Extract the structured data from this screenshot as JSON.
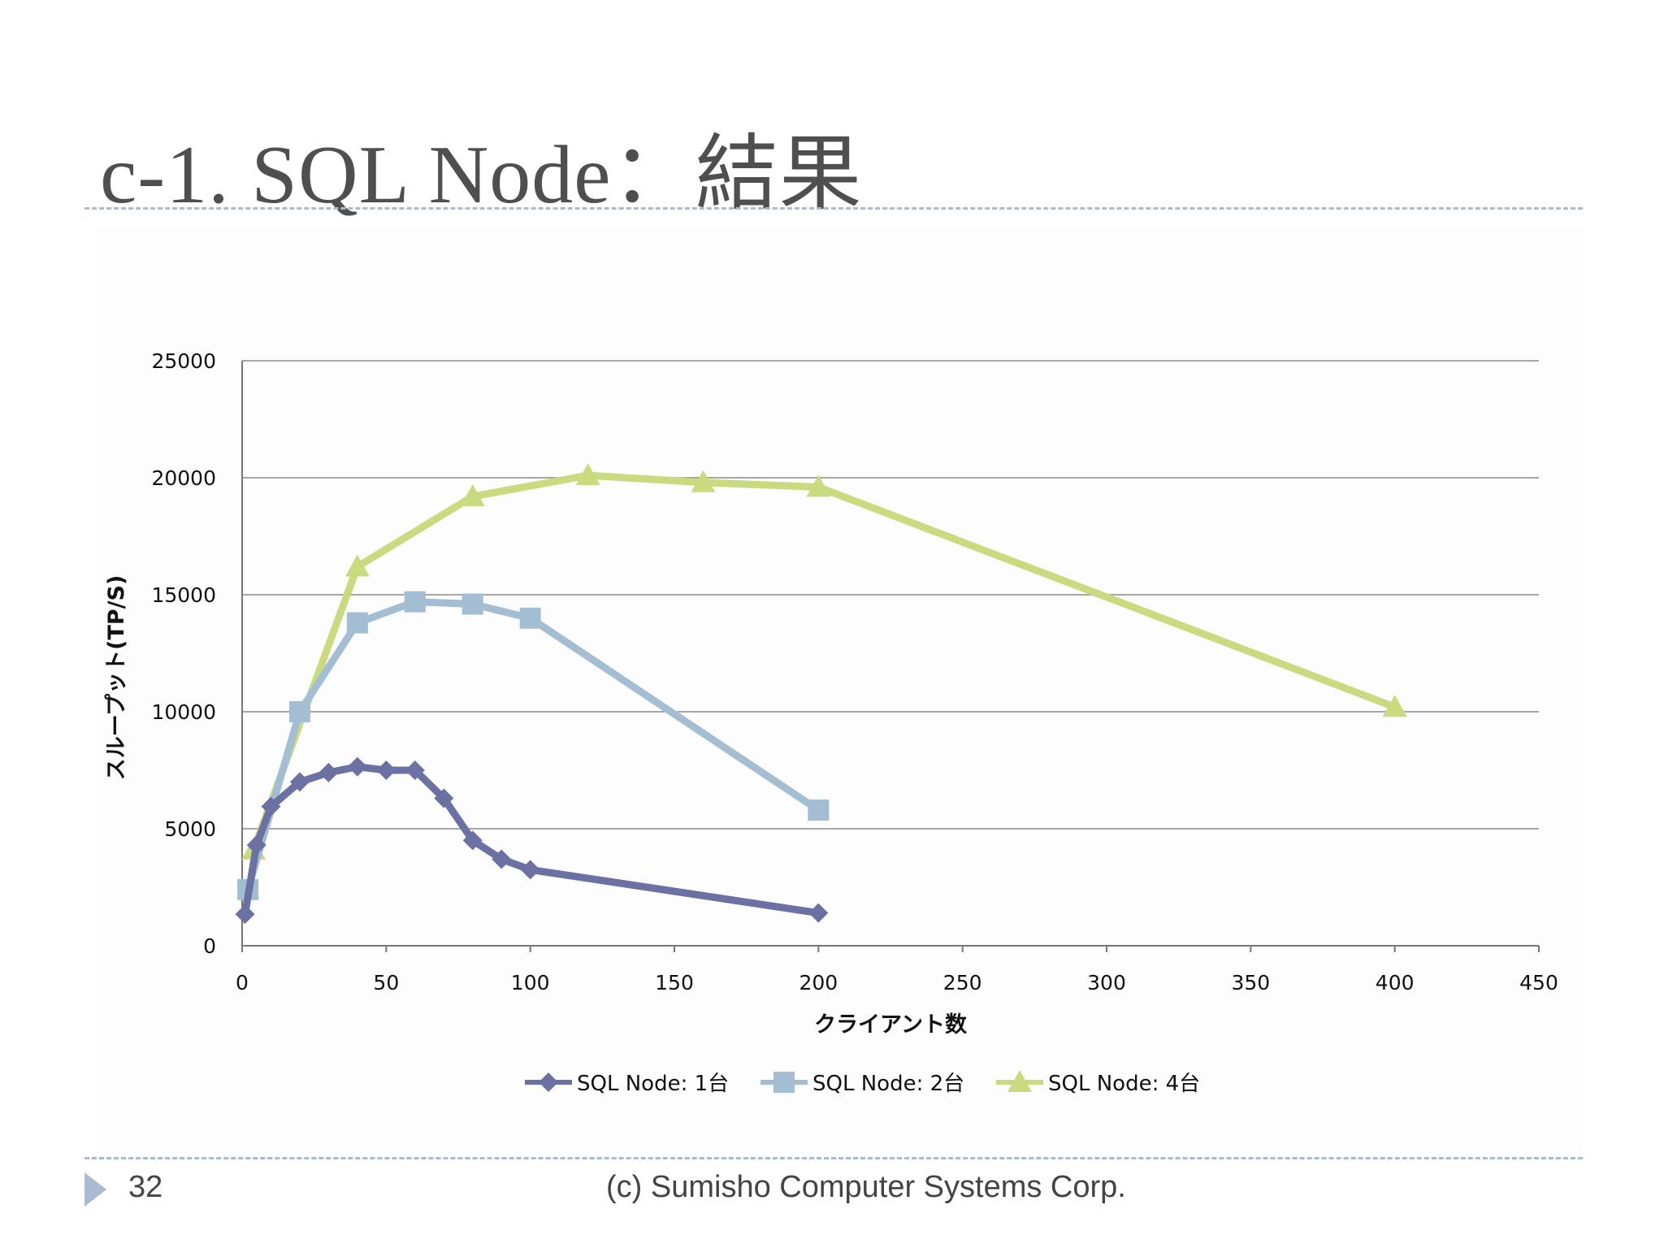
{
  "slide": {
    "title": "c-1. SQL Node：結果",
    "page_number": "32",
    "footer": "(c) Sumisho Computer Systems Corp."
  },
  "colors": {
    "series1": "#6b72a3",
    "series2": "#a3bdd3",
    "series3": "#c9da7f",
    "grid": "#8a8a8a",
    "accent": "#a9bccf"
  },
  "chart_data": {
    "type": "line",
    "title": "",
    "xlabel": "クライアント数",
    "ylabel": "スループット(TP/S)",
    "xlim": [
      0,
      450
    ],
    "ylim": [
      0,
      25000
    ],
    "xticks": [
      0,
      50,
      100,
      150,
      200,
      250,
      300,
      350,
      400,
      450
    ],
    "yticks": [
      0,
      5000,
      10000,
      15000,
      20000,
      25000
    ],
    "grid": "horizontal",
    "legend_position": "bottom",
    "series": [
      {
        "name": "SQL Node: 1台",
        "marker": "diamond",
        "points": [
          [
            1,
            1350
          ],
          [
            5,
            4300
          ],
          [
            10,
            5950
          ],
          [
            20,
            7000
          ],
          [
            30,
            7400
          ],
          [
            40,
            7650
          ],
          [
            50,
            7500
          ],
          [
            60,
            7500
          ],
          [
            70,
            6300
          ],
          [
            80,
            4500
          ],
          [
            90,
            3700
          ],
          [
            100,
            3250
          ],
          [
            200,
            1400
          ]
        ]
      },
      {
        "name": "SQL Node: 2台",
        "marker": "square",
        "points": [
          [
            2,
            2400
          ],
          [
            20,
            10000
          ],
          [
            40,
            13800
          ],
          [
            60,
            14700
          ],
          [
            80,
            14600
          ],
          [
            100,
            14000
          ],
          [
            200,
            5800
          ]
        ]
      },
      {
        "name": "SQL Node: 4台",
        "marker": "triangle",
        "points": [
          [
            4,
            4100
          ],
          [
            40,
            16200
          ],
          [
            80,
            19200
          ],
          [
            120,
            20100
          ],
          [
            160,
            19800
          ],
          [
            200,
            19600
          ],
          [
            400,
            10200
          ]
        ]
      }
    ]
  }
}
